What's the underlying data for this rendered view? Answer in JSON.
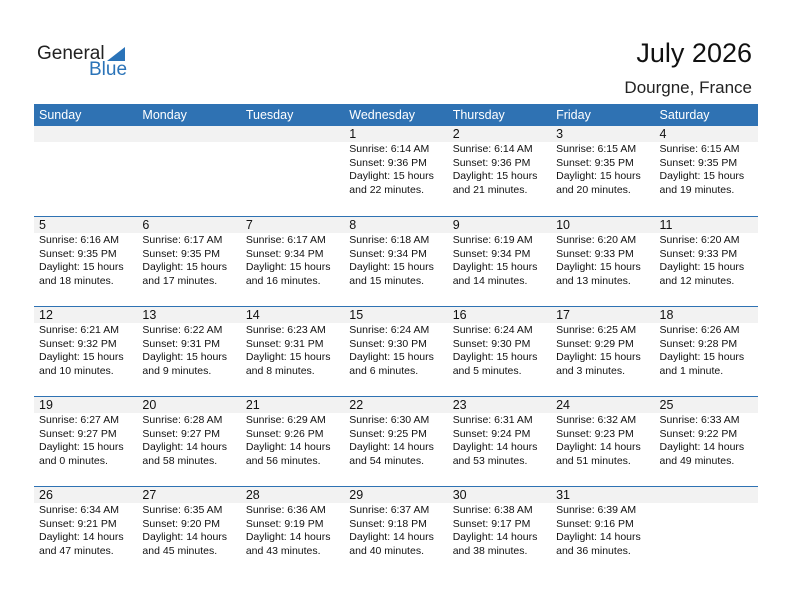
{
  "logo": {
    "general": "General",
    "blue": "Blue"
  },
  "title": "July 2026",
  "location": "Dourgne, France",
  "days": [
    "Sunday",
    "Monday",
    "Tuesday",
    "Wednesday",
    "Thursday",
    "Friday",
    "Saturday"
  ],
  "weeks": [
    [
      null,
      null,
      null,
      {
        "day": "1",
        "sunrise": "Sunrise: 6:14 AM",
        "sunset": "Sunset: 9:36 PM",
        "daylight": "Daylight: 15 hours",
        "minutes": "and 22 minutes."
      },
      {
        "day": "2",
        "sunrise": "Sunrise: 6:14 AM",
        "sunset": "Sunset: 9:36 PM",
        "daylight": "Daylight: 15 hours",
        "minutes": "and 21 minutes."
      },
      {
        "day": "3",
        "sunrise": "Sunrise: 6:15 AM",
        "sunset": "Sunset: 9:35 PM",
        "daylight": "Daylight: 15 hours",
        "minutes": "and 20 minutes."
      },
      {
        "day": "4",
        "sunrise": "Sunrise: 6:15 AM",
        "sunset": "Sunset: 9:35 PM",
        "daylight": "Daylight: 15 hours",
        "minutes": "and 19 minutes."
      }
    ],
    [
      {
        "day": "5",
        "sunrise": "Sunrise: 6:16 AM",
        "sunset": "Sunset: 9:35 PM",
        "daylight": "Daylight: 15 hours",
        "minutes": "and 18 minutes."
      },
      {
        "day": "6",
        "sunrise": "Sunrise: 6:17 AM",
        "sunset": "Sunset: 9:35 PM",
        "daylight": "Daylight: 15 hours",
        "minutes": "and 17 minutes."
      },
      {
        "day": "7",
        "sunrise": "Sunrise: 6:17 AM",
        "sunset": "Sunset: 9:34 PM",
        "daylight": "Daylight: 15 hours",
        "minutes": "and 16 minutes."
      },
      {
        "day": "8",
        "sunrise": "Sunrise: 6:18 AM",
        "sunset": "Sunset: 9:34 PM",
        "daylight": "Daylight: 15 hours",
        "minutes": "and 15 minutes."
      },
      {
        "day": "9",
        "sunrise": "Sunrise: 6:19 AM",
        "sunset": "Sunset: 9:34 PM",
        "daylight": "Daylight: 15 hours",
        "minutes": "and 14 minutes."
      },
      {
        "day": "10",
        "sunrise": "Sunrise: 6:20 AM",
        "sunset": "Sunset: 9:33 PM",
        "daylight": "Daylight: 15 hours",
        "minutes": "and 13 minutes."
      },
      {
        "day": "11",
        "sunrise": "Sunrise: 6:20 AM",
        "sunset": "Sunset: 9:33 PM",
        "daylight": "Daylight: 15 hours",
        "minutes": "and 12 minutes."
      }
    ],
    [
      {
        "day": "12",
        "sunrise": "Sunrise: 6:21 AM",
        "sunset": "Sunset: 9:32 PM",
        "daylight": "Daylight: 15 hours",
        "minutes": "and 10 minutes."
      },
      {
        "day": "13",
        "sunrise": "Sunrise: 6:22 AM",
        "sunset": "Sunset: 9:31 PM",
        "daylight": "Daylight: 15 hours",
        "minutes": "and 9 minutes."
      },
      {
        "day": "14",
        "sunrise": "Sunrise: 6:23 AM",
        "sunset": "Sunset: 9:31 PM",
        "daylight": "Daylight: 15 hours",
        "minutes": "and 8 minutes."
      },
      {
        "day": "15",
        "sunrise": "Sunrise: 6:24 AM",
        "sunset": "Sunset: 9:30 PM",
        "daylight": "Daylight: 15 hours",
        "minutes": "and 6 minutes."
      },
      {
        "day": "16",
        "sunrise": "Sunrise: 6:24 AM",
        "sunset": "Sunset: 9:30 PM",
        "daylight": "Daylight: 15 hours",
        "minutes": "and 5 minutes."
      },
      {
        "day": "17",
        "sunrise": "Sunrise: 6:25 AM",
        "sunset": "Sunset: 9:29 PM",
        "daylight": "Daylight: 15 hours",
        "minutes": "and 3 minutes."
      },
      {
        "day": "18",
        "sunrise": "Sunrise: 6:26 AM",
        "sunset": "Sunset: 9:28 PM",
        "daylight": "Daylight: 15 hours",
        "minutes": "and 1 minute."
      }
    ],
    [
      {
        "day": "19",
        "sunrise": "Sunrise: 6:27 AM",
        "sunset": "Sunset: 9:27 PM",
        "daylight": "Daylight: 15 hours",
        "minutes": "and 0 minutes."
      },
      {
        "day": "20",
        "sunrise": "Sunrise: 6:28 AM",
        "sunset": "Sunset: 9:27 PM",
        "daylight": "Daylight: 14 hours",
        "minutes": "and 58 minutes."
      },
      {
        "day": "21",
        "sunrise": "Sunrise: 6:29 AM",
        "sunset": "Sunset: 9:26 PM",
        "daylight": "Daylight: 14 hours",
        "minutes": "and 56 minutes."
      },
      {
        "day": "22",
        "sunrise": "Sunrise: 6:30 AM",
        "sunset": "Sunset: 9:25 PM",
        "daylight": "Daylight: 14 hours",
        "minutes": "and 54 minutes."
      },
      {
        "day": "23",
        "sunrise": "Sunrise: 6:31 AM",
        "sunset": "Sunset: 9:24 PM",
        "daylight": "Daylight: 14 hours",
        "minutes": "and 53 minutes."
      },
      {
        "day": "24",
        "sunrise": "Sunrise: 6:32 AM",
        "sunset": "Sunset: 9:23 PM",
        "daylight": "Daylight: 14 hours",
        "minutes": "and 51 minutes."
      },
      {
        "day": "25",
        "sunrise": "Sunrise: 6:33 AM",
        "sunset": "Sunset: 9:22 PM",
        "daylight": "Daylight: 14 hours",
        "minutes": "and 49 minutes."
      }
    ],
    [
      {
        "day": "26",
        "sunrise": "Sunrise: 6:34 AM",
        "sunset": "Sunset: 9:21 PM",
        "daylight": "Daylight: 14 hours",
        "minutes": "and 47 minutes."
      },
      {
        "day": "27",
        "sunrise": "Sunrise: 6:35 AM",
        "sunset": "Sunset: 9:20 PM",
        "daylight": "Daylight: 14 hours",
        "minutes": "and 45 minutes."
      },
      {
        "day": "28",
        "sunrise": "Sunrise: 6:36 AM",
        "sunset": "Sunset: 9:19 PM",
        "daylight": "Daylight: 14 hours",
        "minutes": "and 43 minutes."
      },
      {
        "day": "29",
        "sunrise": "Sunrise: 6:37 AM",
        "sunset": "Sunset: 9:18 PM",
        "daylight": "Daylight: 14 hours",
        "minutes": "and 40 minutes."
      },
      {
        "day": "30",
        "sunrise": "Sunrise: 6:38 AM",
        "sunset": "Sunset: 9:17 PM",
        "daylight": "Daylight: 14 hours",
        "minutes": "and 38 minutes."
      },
      {
        "day": "31",
        "sunrise": "Sunrise: 6:39 AM",
        "sunset": "Sunset: 9:16 PM",
        "daylight": "Daylight: 14 hours",
        "minutes": "and 36 minutes."
      },
      null
    ]
  ]
}
